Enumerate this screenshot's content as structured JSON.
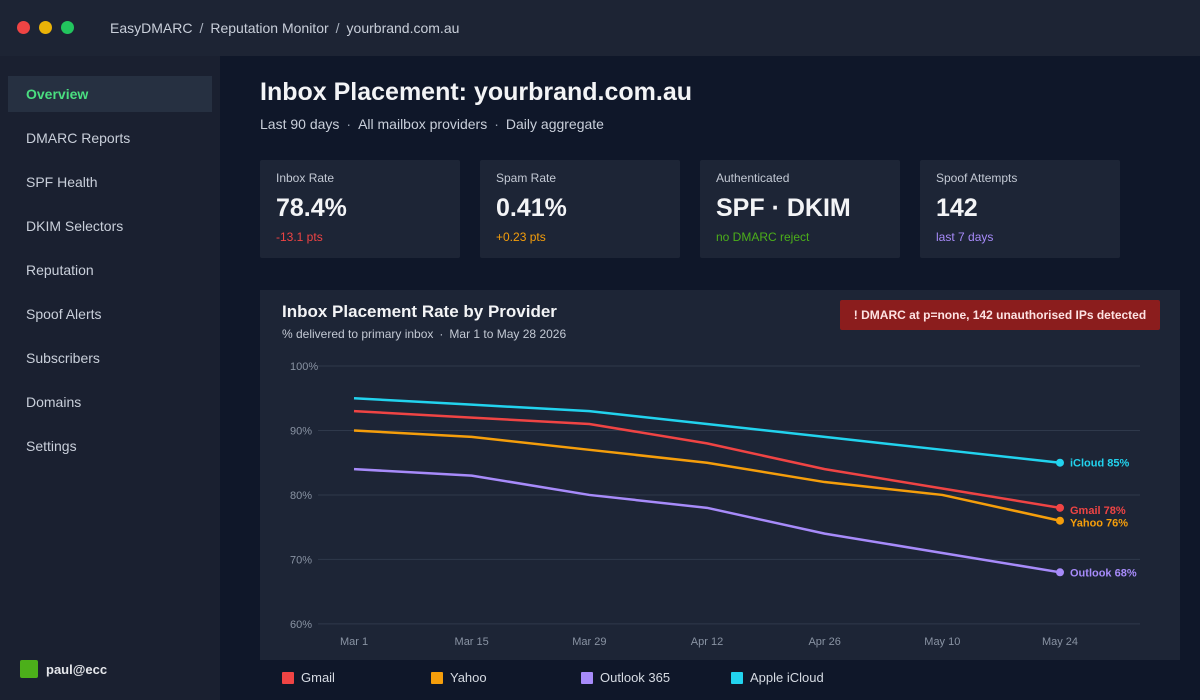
{
  "window": {
    "breadcrumb": [
      "EasyDMARC",
      "Reputation Monitor",
      "yourbrand.com.au"
    ]
  },
  "sidebar": {
    "items": [
      {
        "label": "Overview",
        "active": true
      },
      {
        "label": "DMARC Reports"
      },
      {
        "label": "SPF Health"
      },
      {
        "label": "DKIM Selectors"
      },
      {
        "label": "Reputation"
      },
      {
        "label": "Spoof Alerts"
      },
      {
        "label": "Subscribers"
      },
      {
        "label": "Domains"
      },
      {
        "label": "Settings"
      }
    ],
    "user": {
      "name": "paul@ecc",
      "avatar_color": "#4caf1a"
    }
  },
  "header": {
    "title": "Inbox Placement: yourbrand.com.au",
    "filters": [
      "Last 90 days",
      "All mailbox providers",
      "Daily aggregate"
    ]
  },
  "cards": [
    {
      "label": "Inbox Rate",
      "value": "78.4%",
      "delta": "-13.1 pts",
      "delta_color": "#ef4444"
    },
    {
      "label": "Spam Rate",
      "value": "0.41%",
      "delta": "+0.23 pts",
      "delta_color": "#f59e0b"
    },
    {
      "label": "Authenticated",
      "value": "SPF · DKIM",
      "delta": "no DMARC reject",
      "delta_color": "#4caf1a"
    },
    {
      "label": "Spoof Attempts",
      "value": "142",
      "delta": "last 7 days",
      "delta_color": "#a78bfa"
    }
  ],
  "panel": {
    "title": "Inbox Placement Rate by Provider",
    "subtitle": [
      "% delivered to primary inbox",
      "Mar 1 to May 28 2026"
    ],
    "alert": "!  DMARC at p=none, 142 unauthorised IPs detected"
  },
  "chart_data": {
    "type": "line",
    "title": "Inbox Placement Rate by Provider",
    "subtitle": "% delivered to primary inbox · Mar 1 to May 28 2026",
    "x": [
      "Mar 1",
      "Mar 15",
      "Mar 29",
      "Apr 12",
      "Apr 26",
      "May 10",
      "May 24"
    ],
    "ylim": [
      57.5,
      100
    ],
    "yticks": [
      60,
      70,
      80,
      90,
      100
    ],
    "ytick_labels": [
      "60%",
      "70%",
      "80%",
      "90%",
      "100%"
    ],
    "grid": true,
    "legend_position": "bottom",
    "series": [
      {
        "name": "Gmail",
        "color": "#ef4444",
        "values": [
          93,
          92,
          91,
          88,
          84,
          81,
          78
        ],
        "end_label": "Gmail 78%"
      },
      {
        "name": "Yahoo",
        "color": "#f59e0b",
        "values": [
          90,
          89,
          87,
          85,
          82,
          80,
          76
        ],
        "end_label": "Yahoo 76%"
      },
      {
        "name": "Outlook 365",
        "color": "#a78bfa",
        "values": [
          84,
          83,
          80,
          78,
          74,
          71,
          68
        ],
        "end_label": "Outlook 68%"
      },
      {
        "name": "Apple iCloud",
        "color": "#22d3ee",
        "values": [
          95,
          94,
          93,
          91,
          89,
          87,
          85
        ],
        "end_label": "iCloud 85%"
      }
    ]
  }
}
